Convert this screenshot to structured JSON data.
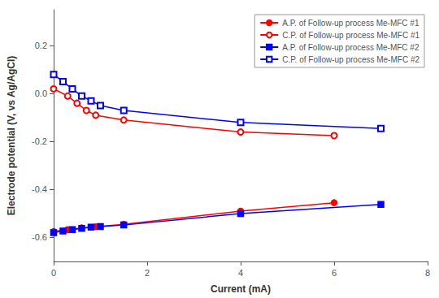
{
  "chart_data": {
    "type": "line",
    "xlabel": "Current (mA)",
    "ylabel": "Electrode potential (V, vs Ag/AgCl)",
    "xlim": [
      0,
      8
    ],
    "xticks": [
      0,
      2,
      4,
      6,
      8
    ],
    "ylim": [
      -0.7,
      0.35
    ],
    "yticks": [
      -0.6,
      -0.4,
      -0.2,
      {
        "value": 0.0,
        "label": "0.0"
      },
      0.2
    ],
    "grid": false,
    "legend": "upper right",
    "series": [
      {
        "name": "A.P. of Follow-up process Me-MFC #1",
        "color": "red",
        "marker": "circle",
        "x": [
          0.0,
          0.3,
          0.6,
          0.9,
          1.5,
          4.0,
          6.0
        ],
        "values": [
          -0.575,
          -0.567,
          -0.56,
          -0.555,
          -0.545,
          -0.49,
          -0.455
        ]
      },
      {
        "name": "C.P. of Follow-up process Me-MFC #1",
        "color": "red",
        "marker": "circle-open",
        "x": [
          0.0,
          0.3,
          0.5,
          0.7,
          0.9,
          1.5,
          4.0,
          6.0
        ],
        "values": [
          0.02,
          -0.01,
          -0.04,
          -0.07,
          -0.09,
          -0.11,
          -0.16,
          -0.175
        ]
      },
      {
        "name": "A.P. of Follow-up process Me-MFC #2",
        "color": "blue",
        "marker": "square",
        "x": [
          0.0,
          0.2,
          0.4,
          0.6,
          0.8,
          1.0,
          1.5,
          4.0,
          7.0
        ],
        "values": [
          -0.58,
          -0.573,
          -0.567,
          -0.562,
          -0.557,
          -0.554,
          -0.548,
          -0.5,
          -0.462
        ]
      },
      {
        "name": "C.P. of Follow-up process Me-MFC #2",
        "color": "blue",
        "marker": "square-open",
        "x": [
          0.0,
          0.2,
          0.4,
          0.6,
          0.8,
          1.0,
          1.5,
          4.0,
          7.0
        ],
        "values": [
          0.08,
          0.05,
          0.02,
          -0.01,
          -0.03,
          -0.05,
          -0.07,
          -0.12,
          -0.145
        ]
      }
    ]
  }
}
